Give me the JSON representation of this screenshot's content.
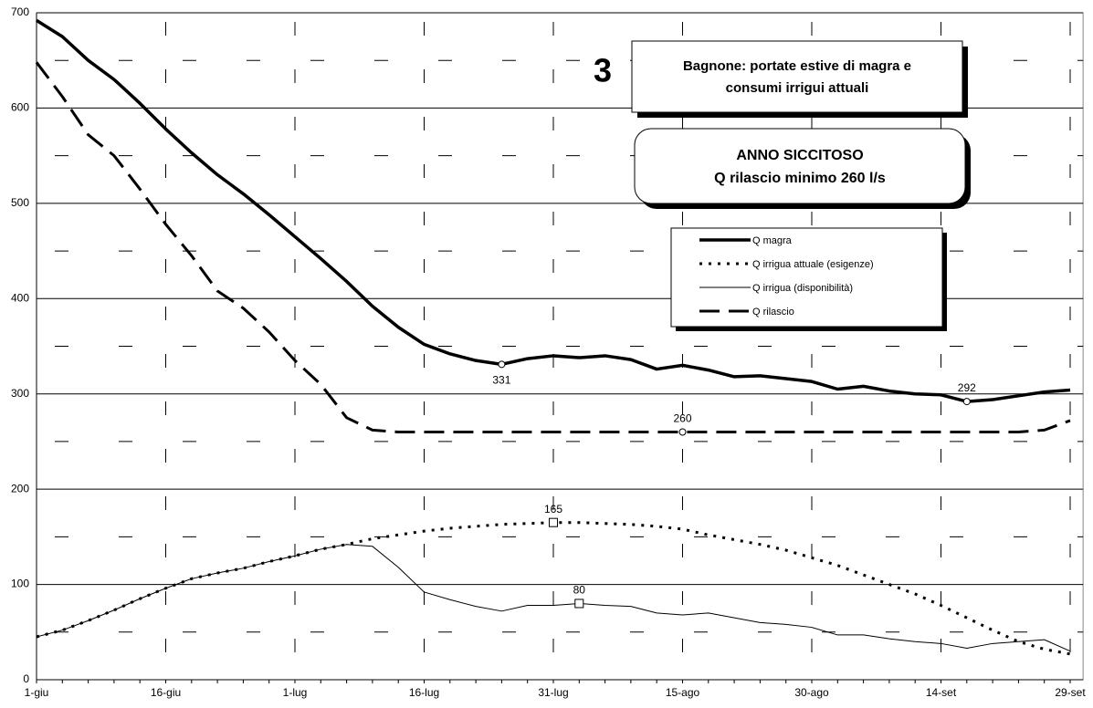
{
  "chart_data": {
    "type": "line",
    "badge": "3",
    "title": [
      "Bagnone: portate estive di magra e",
      "consumi irrigui attuali"
    ],
    "subtitle": [
      "ANNO SICCITOSO",
      "Q rilascio minimo 260 l/s"
    ],
    "categories": [
      "1-giu",
      null,
      null,
      null,
      null,
      "16-giu",
      null,
      null,
      null,
      null,
      "1-lug",
      null,
      null,
      null,
      null,
      "16-lug",
      null,
      null,
      null,
      null,
      "31-lug",
      null,
      null,
      null,
      null,
      "15-ago",
      null,
      null,
      null,
      null,
      "30-ago",
      null,
      null,
      null,
      null,
      "14-set",
      null,
      null,
      null,
      null,
      "29-set"
    ],
    "ylim": [
      0,
      700
    ],
    "yticks": [
      0,
      100,
      200,
      300,
      400,
      500,
      600,
      700
    ],
    "yminor": [
      50,
      150,
      250,
      350,
      450,
      550,
      650
    ],
    "grid": true,
    "legend": "top-right",
    "series": [
      {
        "name": "Q magra",
        "color": "#000000",
        "style": "solid",
        "marker": "circle",
        "values": [
          692,
          675,
          650,
          630,
          605,
          578,
          553,
          530,
          510,
          488,
          465,
          442,
          418,
          392,
          370,
          352,
          342,
          335,
          331,
          337,
          340,
          338,
          340,
          336,
          326,
          330,
          325,
          318,
          319,
          316,
          313,
          305,
          308,
          303,
          300,
          299,
          292,
          294,
          298,
          302,
          304
        ],
        "value_labels": [
          null,
          null,
          null,
          null,
          null,
          null,
          null,
          null,
          null,
          null,
          null,
          null,
          null,
          null,
          null,
          null,
          null,
          null,
          "331",
          null,
          null,
          null,
          null,
          null,
          null,
          null,
          null,
          null,
          null,
          null,
          null,
          null,
          null,
          null,
          null,
          null,
          "292",
          null,
          null,
          null,
          null
        ]
      },
      {
        "name": "Q irrigua attuale (esigenze)",
        "color": "#000000",
        "style": "dotted",
        "marker": "square",
        "values": [
          45,
          52,
          62,
          73,
          85,
          96,
          106,
          112,
          117,
          124,
          130,
          137,
          142,
          148,
          152,
          156,
          159,
          161,
          163,
          164,
          165,
          165,
          164,
          163,
          161,
          158,
          152,
          147,
          142,
          136,
          128,
          120,
          110,
          100,
          90,
          78,
          65,
          52,
          40,
          32,
          27
        ],
        "value_labels": [
          null,
          null,
          null,
          null,
          null,
          null,
          null,
          null,
          null,
          null,
          null,
          null,
          null,
          null,
          null,
          null,
          null,
          null,
          null,
          null,
          "165",
          null,
          null,
          null,
          null,
          null,
          null,
          null,
          null,
          null,
          null,
          null,
          null,
          null,
          null,
          null,
          null,
          null,
          null,
          null,
          null
        ]
      },
      {
        "name": "Q irrigua (disponibilità)",
        "color": "#000000",
        "style": "thin",
        "marker": "square",
        "values": [
          45,
          52,
          62,
          73,
          85,
          96,
          106,
          112,
          117,
          124,
          130,
          137,
          142,
          140,
          118,
          92,
          84,
          77,
          72,
          78,
          78,
          80,
          78,
          77,
          70,
          68,
          70,
          65,
          60,
          58,
          55,
          47,
          47,
          43,
          40,
          38,
          33,
          38,
          40,
          42,
          30
        ],
        "value_labels": [
          null,
          null,
          null,
          null,
          null,
          null,
          null,
          null,
          null,
          null,
          null,
          null,
          null,
          null,
          null,
          null,
          null,
          null,
          null,
          null,
          null,
          "80",
          null,
          null,
          null,
          null,
          null,
          null,
          null,
          null,
          null,
          null,
          null,
          null,
          null,
          null,
          null,
          null,
          null,
          null,
          null
        ]
      },
      {
        "name": "Q rilascio",
        "color": "#000000",
        "style": "dashed",
        "marker": "circle",
        "values": [
          648,
          612,
          572,
          550,
          515,
          478,
          445,
          408,
          390,
          365,
          335,
          310,
          275,
          262,
          260,
          260,
          260,
          260,
          260,
          260,
          260,
          260,
          260,
          260,
          260,
          260,
          260,
          260,
          260,
          260,
          260,
          260,
          260,
          260,
          260,
          260,
          260,
          260,
          260,
          262,
          272
        ],
        "value_labels": [
          null,
          null,
          null,
          null,
          null,
          null,
          null,
          null,
          null,
          null,
          null,
          null,
          null,
          null,
          null,
          null,
          null,
          null,
          null,
          null,
          null,
          null,
          null,
          null,
          null,
          "260",
          null,
          null,
          null,
          null,
          null,
          null,
          null,
          null,
          null,
          null,
          null,
          null,
          null,
          null,
          null
        ]
      }
    ]
  }
}
